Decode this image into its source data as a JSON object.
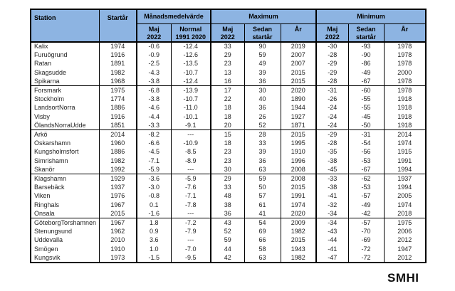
{
  "table": {
    "header": {
      "station": "Station",
      "startar": "Startår",
      "manadsmedelvarde": "Månadsmedelvärde",
      "maximum": "Maximum",
      "minimum": "Minimum",
      "sub": [
        {
          "line1": "Maj",
          "line2": "2022"
        },
        {
          "line1": "Normal",
          "line2": "1991 2020"
        },
        {
          "line1": "Maj",
          "line2": "2022"
        },
        {
          "line1": "Sedan",
          "line2": "startår"
        },
        {
          "line1": "År",
          "line2": ""
        },
        {
          "line1": "Maj",
          "line2": "2022"
        },
        {
          "line1": "Sedan",
          "line2": "startår"
        },
        {
          "line1": "År",
          "line2": ""
        }
      ]
    },
    "columns": [
      "station",
      "startar",
      "manadsmedel-maj-2022",
      "manadsmedel-normal",
      "max-maj-2022",
      "max-sedan-startar",
      "max-ar",
      "min-maj-2022",
      "min-sedan-startar",
      "min-ar"
    ],
    "groups": [
      [
        [
          "Kalix",
          "1974",
          "-0.6",
          "-12.4",
          "33",
          "90",
          "2019",
          "-30",
          "-93",
          "1978"
        ],
        [
          "Furuögrund",
          "1916",
          "-0.9",
          "-12.6",
          "29",
          "59",
          "2007",
          "-28",
          "-90",
          "1978"
        ],
        [
          "Ratan",
          "1891",
          "-2.5",
          "-13.5",
          "23",
          "49",
          "2007",
          "-29",
          "-86",
          "1978"
        ],
        [
          "Skagsudde",
          "1982",
          "-4.3",
          "-10.7",
          "13",
          "39",
          "2015",
          "-29",
          "-49",
          "2000"
        ],
        [
          "Spikarna",
          "1968",
          "-3.8",
          "-12.4",
          "16",
          "36",
          "2015",
          "-28",
          "-67",
          "1978"
        ]
      ],
      [
        [
          "Forsmark",
          "1975",
          "-6.8",
          "-13.9",
          "17",
          "30",
          "2020",
          "-31",
          "-60",
          "1978"
        ],
        [
          "Stockholm",
          "1774",
          "-3.8",
          "-10.7",
          "22",
          "40",
          "1890",
          "-26",
          "-55",
          "1918"
        ],
        [
          "LandsortNorra",
          "1886",
          "-4.6",
          "-11.0",
          "18",
          "36",
          "1944",
          "-24",
          "-55",
          "1918"
        ],
        [
          "Visby",
          "1916",
          "-4.4",
          "-10.1",
          "18",
          "26",
          "1927",
          "-24",
          "-45",
          "1918"
        ],
        [
          "ÖlandsNorraUdde",
          "1851",
          "-3.3",
          "-9.1",
          "20",
          "52",
          "1871",
          "-24",
          "-50",
          "1918"
        ]
      ],
      [
        [
          "Arkö",
          "2014",
          "-8.2",
          "---",
          "15",
          "28",
          "2015",
          "-29",
          "-31",
          "2014"
        ],
        [
          "Oskarshamn",
          "1960",
          "-6.6",
          "-10.9",
          "18",
          "33",
          "1995",
          "-28",
          "-54",
          "1974"
        ],
        [
          "Kungsholmsfort",
          "1886",
          "-4.5",
          "-8.5",
          "23",
          "39",
          "1910",
          "-35",
          "-56",
          "1915"
        ],
        [
          "Simrishamn",
          "1982",
          "-7.1",
          "-8.9",
          "23",
          "36",
          "1996",
          "-38",
          "-53",
          "1991"
        ],
        [
          "Skanör",
          "1992",
          "-5.9",
          "---",
          "30",
          "63",
          "2008",
          "-45",
          "-67",
          "1994"
        ]
      ],
      [
        [
          "Klagshamn",
          "1929",
          "-3.6",
          "-5.9",
          "29",
          "59",
          "2008",
          "-33",
          "-62",
          "1937"
        ],
        [
          "Barsebäck",
          "1937",
          "-3.0",
          "-7.6",
          "33",
          "50",
          "2015",
          "-38",
          "-53",
          "1994"
        ],
        [
          "Viken",
          "1976",
          "-0.8",
          "-7.1",
          "48",
          "57",
          "1991",
          "-41",
          "-57",
          "2005"
        ],
        [
          "Ringhals",
          "1967",
          "0.1",
          "-7.8",
          "38",
          "61",
          "1974",
          "-32",
          "-49",
          "1974"
        ],
        [
          "Onsala",
          "2015",
          "-1.6",
          "---",
          "36",
          "41",
          "2020",
          "-34",
          "-42",
          "2018"
        ]
      ],
      [
        [
          "GöteborgTorshamnen",
          "1967",
          "1.8",
          "-7.2",
          "43",
          "54",
          "2009",
          "-34",
          "-57",
          "1975"
        ],
        [
          "Stenungsund",
          "1962",
          "0.9",
          "-7.9",
          "52",
          "69",
          "1982",
          "-43",
          "-70",
          "2006"
        ],
        [
          "Uddevalla",
          "2010",
          "3.6",
          "---",
          "59",
          "66",
          "2015",
          "-44",
          "-69",
          "2012"
        ],
        [
          "Smögen",
          "1910",
          "1.0",
          "-7.0",
          "44",
          "58",
          "1943",
          "-41",
          "-72",
          "1947"
        ],
        [
          "Kungsvik",
          "1973",
          "-1.5",
          "-9.5",
          "42",
          "63",
          "1982",
          "-47",
          "-72",
          "2012"
        ]
      ]
    ]
  },
  "footer": {
    "logo_text": "SMHI"
  },
  "colors": {
    "header_bg": "#8DB4E2",
    "border": "#000000",
    "text": "#1f1f1f"
  }
}
